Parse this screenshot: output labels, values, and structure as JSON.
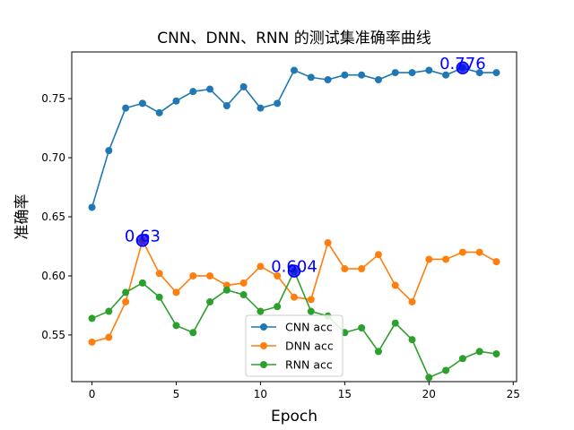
{
  "chart_data": {
    "type": "line",
    "title": "CNN、DNN、RNN 的测试集准确率曲线",
    "xlabel": "Epoch",
    "ylabel": "准确率",
    "xlim": [
      -1.2,
      25.2
    ],
    "ylim": [
      0.5105,
      0.7895
    ],
    "x": [
      0,
      1,
      2,
      3,
      4,
      5,
      6,
      7,
      8,
      9,
      10,
      11,
      12,
      13,
      14,
      15,
      16,
      17,
      18,
      19,
      20,
      21,
      22,
      23,
      24
    ],
    "x_ticks": [
      0,
      5,
      10,
      15,
      20,
      25
    ],
    "y_ticks": [
      0.55,
      0.6,
      0.65,
      0.7,
      0.75
    ],
    "x_tick_labels": [
      "0",
      "5",
      "10",
      "15",
      "20",
      "25"
    ],
    "y_tick_labels": [
      "0.55",
      "0.60",
      "0.65",
      "0.70",
      "0.75"
    ],
    "grid": false,
    "legend_position": "bottom-center",
    "series": [
      {
        "name": "CNN acc",
        "color": "#1f77b4",
        "values": [
          0.658,
          0.706,
          0.742,
          0.746,
          0.738,
          0.748,
          0.756,
          0.758,
          0.744,
          0.76,
          0.742,
          0.746,
          0.774,
          0.768,
          0.766,
          0.77,
          0.77,
          0.766,
          0.772,
          0.772,
          0.774,
          0.77,
          0.776,
          0.772,
          0.772
        ]
      },
      {
        "name": "DNN acc",
        "color": "#ff7f0e",
        "values": [
          0.544,
          0.548,
          0.578,
          0.63,
          0.602,
          0.586,
          0.6,
          0.6,
          0.592,
          0.594,
          0.608,
          0.6,
          0.582,
          0.58,
          0.628,
          0.606,
          0.606,
          0.618,
          0.592,
          0.578,
          0.614,
          0.614,
          0.62,
          0.62,
          0.612
        ]
      },
      {
        "name": "RNN acc",
        "color": "#2ca02c",
        "values": [
          0.564,
          0.57,
          0.586,
          0.594,
          0.582,
          0.558,
          0.552,
          0.578,
          0.588,
          0.584,
          0.57,
          0.574,
          0.604,
          0.57,
          0.566,
          0.552,
          0.556,
          0.536,
          0.56,
          0.546,
          0.514,
          0.52,
          0.53,
          0.536,
          0.534
        ]
      }
    ],
    "annotations": [
      {
        "text": "0.776",
        "x": 22,
        "y": 0.776,
        "color": "#0000ff"
      },
      {
        "text": "0.63",
        "x": 3,
        "y": 0.63,
        "color": "#0000ff"
      },
      {
        "text": "0.604",
        "x": 12,
        "y": 0.604,
        "color": "#0000ff"
      }
    ]
  }
}
